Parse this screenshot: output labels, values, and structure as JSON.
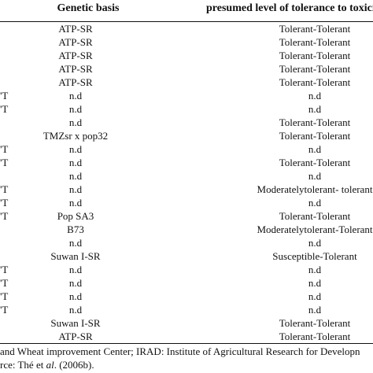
{
  "header": {
    "genetic_basis": "Genetic basis",
    "tolerance": "presumed level of tolerance to toxicity: alum"
  },
  "rows": [
    {
      "left": "",
      "genetic": "ATP-SR",
      "tolerance": "Tolerant-Tolerant"
    },
    {
      "left": "",
      "genetic": "ATP-SR",
      "tolerance": "Tolerant-Tolerant"
    },
    {
      "left": "",
      "genetic": "ATP-SR",
      "tolerance": "Tolerant-Tolerant"
    },
    {
      "left": "",
      "genetic": "ATP-SR",
      "tolerance": "Tolerant-Tolerant"
    },
    {
      "left": "",
      "genetic": "ATP-SR",
      "tolerance": "Tolerant-Tolerant"
    },
    {
      "left": "'T",
      "genetic": "n.d",
      "tolerance": "n.d"
    },
    {
      "left": "'T",
      "genetic": "n.d",
      "tolerance": "n.d"
    },
    {
      "left": "",
      "genetic": "n.d",
      "tolerance": "Tolerant-Tolerant"
    },
    {
      "left": "",
      "genetic": "TMZsr x pop32",
      "tolerance": "Tolerant-Tolerant"
    },
    {
      "left": "'T",
      "genetic": "n.d",
      "tolerance": "n.d"
    },
    {
      "left": "'T",
      "genetic": "n.d",
      "tolerance": "Tolerant-Tolerant"
    },
    {
      "left": "",
      "genetic": "n.d",
      "tolerance": "n.d"
    },
    {
      "left": "'T",
      "genetic": "n.d",
      "tolerance": "Moderatelytolerant- tolerant"
    },
    {
      "left": "'T",
      "genetic": "n.d",
      "tolerance": "n.d"
    },
    {
      "left": "'T",
      "genetic": "Pop SA3",
      "tolerance": "Tolerant-Tolerant"
    },
    {
      "left": "",
      "genetic": "B73",
      "tolerance": "Moderatelytolerant-Tolerant"
    },
    {
      "left": "",
      "genetic": "n.d",
      "tolerance": "n.d"
    },
    {
      "left": "",
      "genetic": "Suwan I-SR",
      "tolerance": "Susceptible-Tolerant"
    },
    {
      "left": "'T",
      "genetic": "n.d",
      "tolerance": "n.d"
    },
    {
      "left": "'T",
      "genetic": "n.d",
      "tolerance": "n.d"
    },
    {
      "left": "'T",
      "genetic": "n.d",
      "tolerance": "n.d"
    },
    {
      "left": "'T",
      "genetic": "n.d",
      "tolerance": "n.d"
    },
    {
      "left": "",
      "genetic": "Suwan I-SR",
      "tolerance": "Tolerant-Tolerant"
    },
    {
      "left": "",
      "genetic": "ATP-SR",
      "tolerance": "Tolerant-Tolerant"
    }
  ],
  "footnotes": {
    "line1": "and Wheat improvement Center; IRAD: Institute of Agricultural Research for Developn",
    "line2_prefix": "rce: Thé et ",
    "line2_italic": "al",
    "line2_suffix": ". (2006b)."
  }
}
